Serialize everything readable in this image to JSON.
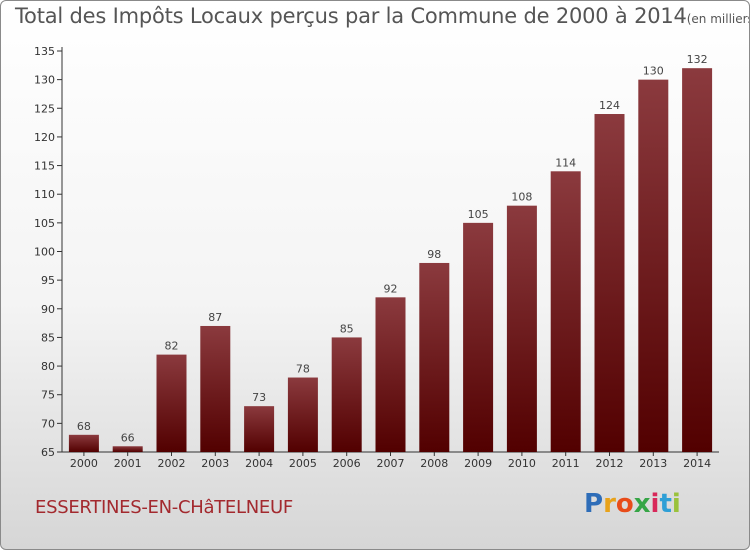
{
  "chart_data": {
    "type": "bar",
    "title": "Total des Impôts Locaux perçus par la Commune de 2000 à 2014",
    "unit_label": "(en milliers d'€)",
    "categories": [
      "2000",
      "2001",
      "2002",
      "2003",
      "2004",
      "2005",
      "2006",
      "2007",
      "2008",
      "2009",
      "2010",
      "2011",
      "2012",
      "2013",
      "2014"
    ],
    "values": [
      68,
      66,
      82,
      87,
      73,
      78,
      85,
      92,
      98,
      105,
      108,
      114,
      124,
      130,
      132
    ],
    "ylim": [
      65,
      135
    ],
    "yticks": [
      65,
      70,
      75,
      80,
      85,
      90,
      95,
      100,
      105,
      110,
      115,
      120,
      125,
      130,
      135
    ],
    "xlabel": "",
    "ylabel": "",
    "bar_color_top": "#8b3a3e",
    "bar_color_bottom": "#520000",
    "grid": false
  },
  "commune": "ESSERTINES-EN-CHâTELNEUF",
  "logo": {
    "text": "Proxiti",
    "letters": [
      "P",
      "r",
      "o",
      "x",
      "i",
      "t",
      "i"
    ],
    "colors": [
      "#2e6db8",
      "#e8a21a",
      "#e84c1a",
      "#36a546",
      "#d8285a",
      "#2e9fd6",
      "#9ac23c"
    ]
  }
}
